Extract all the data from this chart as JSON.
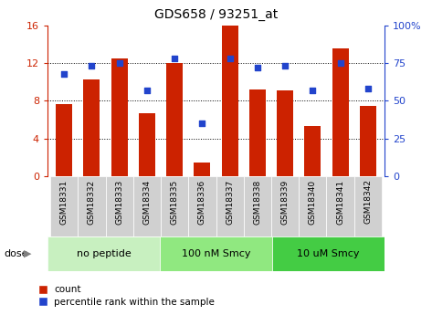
{
  "title": "GDS658 / 93251_at",
  "samples": [
    "GSM18331",
    "GSM18332",
    "GSM18333",
    "GSM18334",
    "GSM18335",
    "GSM18336",
    "GSM18337",
    "GSM18338",
    "GSM18339",
    "GSM18340",
    "GSM18341",
    "GSM18342"
  ],
  "counts": [
    7.7,
    10.3,
    12.5,
    6.7,
    12.0,
    1.5,
    16.0,
    9.2,
    9.1,
    5.3,
    13.5,
    7.5
  ],
  "percentiles": [
    68,
    73,
    75,
    57,
    78,
    35,
    78,
    72,
    73,
    57,
    75,
    58
  ],
  "groups": [
    {
      "label": "no peptide",
      "start": 0,
      "end": 4,
      "color": "#c8f0c0"
    },
    {
      "label": "100 nM Smcy",
      "start": 4,
      "end": 8,
      "color": "#90e880"
    },
    {
      "label": "10 uM Smcy",
      "start": 8,
      "end": 12,
      "color": "#44cc44"
    }
  ],
  "bar_color": "#cc2200",
  "dot_color": "#2244cc",
  "ylim_left": [
    0,
    16
  ],
  "ylim_right": [
    0,
    100
  ],
  "yticks_left": [
    0,
    4,
    8,
    12,
    16
  ],
  "yticks_right": [
    0,
    25,
    50,
    75,
    100
  ],
  "bg_xticklabels": "#d0d0d0",
  "dose_label": "dose",
  "legend_count": "count",
  "legend_percentile": "percentile rank within the sample"
}
